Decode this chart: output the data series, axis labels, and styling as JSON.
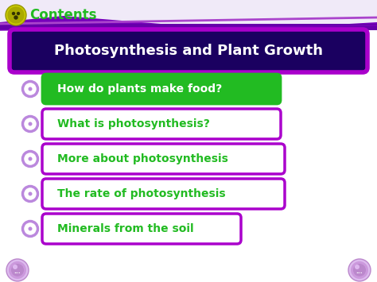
{
  "title": "Photosynthesis and Plant Growth",
  "header_label": "Contents",
  "menu_items": [
    "How do plants make food?",
    "What is photosynthesis?",
    "More about photosynthesis",
    "The rate of photosynthesis",
    "Minerals from the soil"
  ],
  "bg_color": "#ffffff",
  "title_box_bg": "#1a0060",
  "title_box_border": "#aa00cc",
  "title_text_color": "#ffffff",
  "item1_bg": "#22bb22",
  "item1_border": "#22bb22",
  "item1_text_color": "#ffffff",
  "item_bg": "#ffffff",
  "item_border": "#aa00cc",
  "item_text_color": "#22bb22",
  "header_text_color": "#22bb22",
  "bullet_outer": "#bb88dd",
  "bullet_inner": "#ffffff",
  "top_bar_bg": "#f0eaf8",
  "top_stripe_color": "#7700bb",
  "nav_outer": "#cc99ee",
  "nav_inner": "#9966bb"
}
